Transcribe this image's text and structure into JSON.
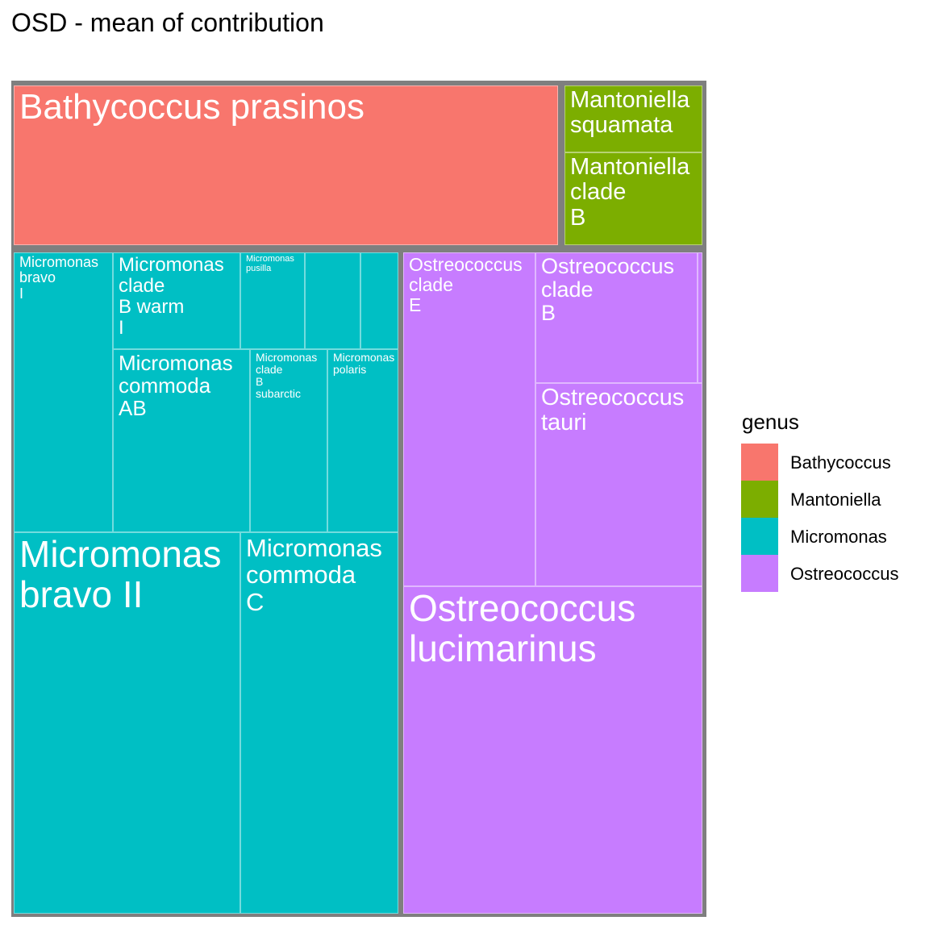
{
  "chart_data": {
    "type": "treemap",
    "title": "OSD - mean of contribution",
    "legend": {
      "title": "genus",
      "position": "right",
      "entries": [
        {
          "label": "Bathycoccus",
          "color": "#F8766D"
        },
        {
          "label": "Mantoniella",
          "color": "#7CAE00"
        },
        {
          "label": "Micromonas",
          "color": "#00BFC4"
        },
        {
          "label": "Ostreococcus",
          "color": "#C77CFF"
        }
      ]
    },
    "groups": [
      {
        "genus": "Bathycoccus",
        "color": "#F8766D",
        "items": [
          {
            "label": "Bathycoccus prasinos",
            "value": 1346
          }
        ]
      },
      {
        "genus": "Mantoniella",
        "color": "#7CAE00",
        "items": [
          {
            "label": "Mantoniella\nsquamata",
            "value": 141
          },
          {
            "label": "Mantoniella\nclade\nB",
            "value": 197
          }
        ]
      },
      {
        "genus": "Micromonas",
        "color": "#00BFC4",
        "items": [
          {
            "label": "Micromonas\nbravo\nI",
            "value": 423
          },
          {
            "label": "Micromonas\nclade\nB warm\nI",
            "value": 190
          },
          {
            "label": "Micromonas\npusilla",
            "value": 96
          },
          {
            "label": "",
            "value": 82
          },
          {
            "label": "",
            "value": 54
          },
          {
            "label": "Micromonas\ncommoda\nAB",
            "value": 210
          },
          {
            "label": "Micromonas\nclade\nB\nsubarctic",
            "value": 118
          },
          {
            "label": "Micromonas\npolaris",
            "value": 110
          },
          {
            "label": "Micromonas\nbravo II",
            "value": 1326
          },
          {
            "label": "Micromonas\ncommoda\nC",
            "value": 913
          }
        ]
      },
      {
        "genus": "Ostreococcus",
        "color": "#C77CFF",
        "items": [
          {
            "label": "Ostreococcus\nclade\nE",
            "value": 680
          },
          {
            "label": "Ostreococcus\nclade\nB",
            "value": 326
          },
          {
            "label": "",
            "value": 8
          },
          {
            "label": "Ostreococcus\ntauri",
            "value": 512
          },
          {
            "label": "Ostreococcus\nlucimarinus",
            "value": 1529
          }
        ]
      }
    ]
  }
}
